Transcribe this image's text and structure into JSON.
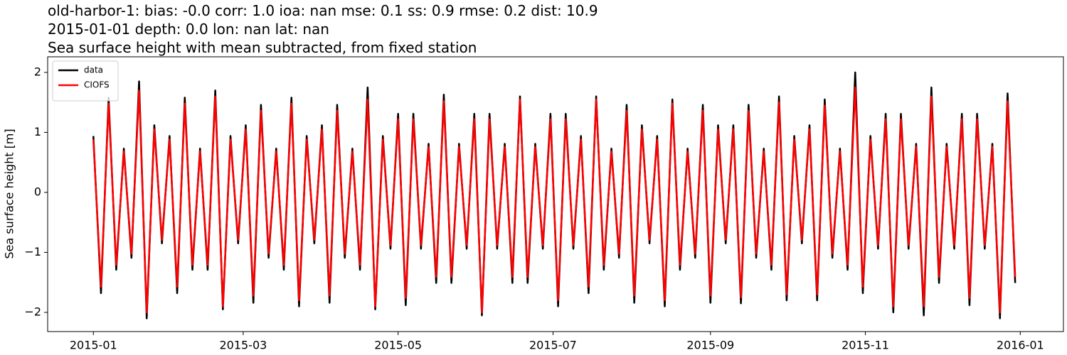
{
  "chart_data": {
    "type": "line",
    "title_lines": [
      "old-harbor-1: bias: -0.0  corr: 1.0  ioa: nan  mse: 0.1  ss: 0.9  rmse: 0.2  dist: 10.9",
      "2015-01-01 depth: 0.0 lon: nan lat: nan",
      "Sea surface height with mean subtracted, from fixed station"
    ],
    "ylabel": "Sea surface height [m]",
    "x": [
      "2015-01-01",
      "2015-01-04",
      "2015-01-07",
      "2015-01-10",
      "2015-01-13",
      "2015-01-16",
      "2015-01-19",
      "2015-01-22",
      "2015-01-25",
      "2015-01-28",
      "2015-01-31",
      "2015-02-03",
      "2015-02-06",
      "2015-02-09",
      "2015-02-12",
      "2015-02-15",
      "2015-02-18",
      "2015-02-21",
      "2015-02-24",
      "2015-02-27",
      "2015-03-02",
      "2015-03-05",
      "2015-03-08",
      "2015-03-11",
      "2015-03-14",
      "2015-03-17",
      "2015-03-20",
      "2015-03-23",
      "2015-03-26",
      "2015-03-29",
      "2015-04-01",
      "2015-04-04",
      "2015-04-07",
      "2015-04-10",
      "2015-04-13",
      "2015-04-16",
      "2015-04-19",
      "2015-04-22",
      "2015-04-25",
      "2015-04-28",
      "2015-05-01",
      "2015-05-04",
      "2015-05-07",
      "2015-05-10",
      "2015-05-13",
      "2015-05-16",
      "2015-05-19",
      "2015-05-22",
      "2015-05-25",
      "2015-05-28",
      "2015-05-31",
      "2015-06-03",
      "2015-06-06",
      "2015-06-09",
      "2015-06-12",
      "2015-06-15",
      "2015-06-18",
      "2015-06-21",
      "2015-06-24",
      "2015-06-27",
      "2015-06-30",
      "2015-07-03",
      "2015-07-06",
      "2015-07-09",
      "2015-07-12",
      "2015-07-15",
      "2015-07-18",
      "2015-07-21",
      "2015-07-24",
      "2015-07-27",
      "2015-07-30",
      "2015-08-02",
      "2015-08-05",
      "2015-08-08",
      "2015-08-11",
      "2015-08-14",
      "2015-08-17",
      "2015-08-20",
      "2015-08-23",
      "2015-08-26",
      "2015-08-29",
      "2015-09-01",
      "2015-09-04",
      "2015-09-07",
      "2015-09-10",
      "2015-09-13",
      "2015-09-16",
      "2015-09-19",
      "2015-09-22",
      "2015-09-25",
      "2015-09-28",
      "2015-10-01",
      "2015-10-04",
      "2015-10-07",
      "2015-10-10",
      "2015-10-13",
      "2015-10-16",
      "2015-10-19",
      "2015-10-22",
      "2015-10-25",
      "2015-10-28",
      "2015-10-31",
      "2015-11-03",
      "2015-11-06",
      "2015-11-09",
      "2015-11-12",
      "2015-11-15",
      "2015-11-18",
      "2015-11-21",
      "2015-11-24",
      "2015-11-27",
      "2015-11-30",
      "2015-12-03",
      "2015-12-06",
      "2015-12-09",
      "2015-12-12",
      "2015-12-15",
      "2015-12-18",
      "2015-12-21",
      "2015-12-24",
      "2015-12-27",
      "2015-12-30"
    ],
    "series": [
      {
        "name": "data",
        "color": "#000000",
        "values": [
          0.94,
          -1.68,
          1.58,
          -1.29,
          0.73,
          -1.09,
          1.85,
          -2.1,
          1.12,
          -0.85,
          0.94,
          -1.68,
          1.58,
          -1.29,
          0.73,
          -1.29,
          1.7,
          -1.95,
          0.94,
          -0.85,
          1.12,
          -1.84,
          1.46,
          -1.09,
          0.73,
          -1.29,
          1.58,
          -1.9,
          0.94,
          -0.85,
          1.12,
          -1.84,
          1.46,
          -1.09,
          0.73,
          -1.29,
          1.75,
          -1.95,
          0.94,
          -0.94,
          1.31,
          -1.88,
          1.31,
          -0.94,
          0.81,
          -1.51,
          1.63,
          -1.51,
          0.81,
          -0.94,
          1.31,
          -2.05,
          1.31,
          -0.94,
          0.81,
          -1.51,
          1.6,
          -1.51,
          0.81,
          -0.94,
          1.31,
          -1.9,
          1.31,
          -0.94,
          0.94,
          -1.68,
          1.6,
          -1.29,
          0.73,
          -1.09,
          1.46,
          -1.84,
          1.12,
          -0.85,
          0.94,
          -1.9,
          1.55,
          -1.29,
          0.73,
          -1.09,
          1.46,
          -1.84,
          1.12,
          -0.85,
          1.12,
          -1.85,
          1.46,
          -1.09,
          0.73,
          -1.29,
          1.6,
          -1.8,
          0.94,
          -0.85,
          1.12,
          -1.8,
          1.55,
          -1.09,
          0.73,
          -1.29,
          2.0,
          -1.68,
          0.94,
          -0.94,
          1.31,
          -2.0,
          1.31,
          -0.94,
          0.81,
          -2.05,
          1.75,
          -1.51,
          0.81,
          -0.94,
          1.31,
          -1.88,
          1.31,
          -0.94,
          0.81,
          -2.1,
          1.65,
          -1.51
        ]
      },
      {
        "name": "CIOFS",
        "color": "#ff0000",
        "values": [
          0.88,
          -1.57,
          1.48,
          -1.21,
          0.68,
          -1.02,
          1.7,
          -2.0,
          1.05,
          -0.79,
          0.88,
          -1.57,
          1.48,
          -1.21,
          0.68,
          -1.21,
          1.6,
          -1.9,
          0.88,
          -0.79,
          1.05,
          -1.72,
          1.36,
          -1.02,
          0.68,
          -1.21,
          1.48,
          -1.8,
          0.88,
          -0.79,
          1.05,
          -1.72,
          1.36,
          -1.02,
          0.68,
          -1.21,
          1.55,
          -1.9,
          0.88,
          -0.88,
          1.22,
          -1.76,
          1.22,
          -0.88,
          0.76,
          -1.41,
          1.52,
          -1.41,
          0.76,
          -0.88,
          1.22,
          -2.0,
          1.22,
          -0.88,
          0.76,
          -1.41,
          1.55,
          -1.41,
          0.76,
          -0.88,
          1.22,
          -1.8,
          1.22,
          -0.88,
          0.88,
          -1.57,
          1.55,
          -1.21,
          0.68,
          -1.02,
          1.36,
          -1.72,
          1.05,
          -0.79,
          0.88,
          -1.8,
          1.48,
          -1.21,
          0.68,
          -1.02,
          1.36,
          -1.72,
          1.05,
          -0.79,
          1.05,
          -1.75,
          1.36,
          -1.02,
          0.68,
          -1.21,
          1.5,
          -1.7,
          0.88,
          -0.79,
          1.05,
          -1.7,
          1.45,
          -1.02,
          0.68,
          -1.21,
          1.75,
          -1.57,
          0.88,
          -0.88,
          1.22,
          -1.9,
          1.22,
          -0.88,
          0.76,
          -1.9,
          1.6,
          -1.41,
          0.76,
          -0.88,
          1.22,
          -1.76,
          1.22,
          -0.88,
          0.76,
          -2.0,
          1.52,
          -1.41
        ]
      }
    ],
    "xlim": [
      "2014-12-14",
      "2016-01-18"
    ],
    "xticks": [
      {
        "value": "2015-01-01",
        "label": "2015-01"
      },
      {
        "value": "2015-03-01",
        "label": "2015-03"
      },
      {
        "value": "2015-05-01",
        "label": "2015-05"
      },
      {
        "value": "2015-07-01",
        "label": "2015-07"
      },
      {
        "value": "2015-09-01",
        "label": "2015-09"
      },
      {
        "value": "2015-11-01",
        "label": "2015-11"
      },
      {
        "value": "2016-01-01",
        "label": "2016-01"
      }
    ],
    "ylim": [
      -2.32,
      2.26
    ],
    "yticks": [
      {
        "value": -2,
        "label": "−2"
      },
      {
        "value": -1,
        "label": "−1"
      },
      0,
      1,
      2
    ],
    "legend": "upper left",
    "grid": false
  }
}
